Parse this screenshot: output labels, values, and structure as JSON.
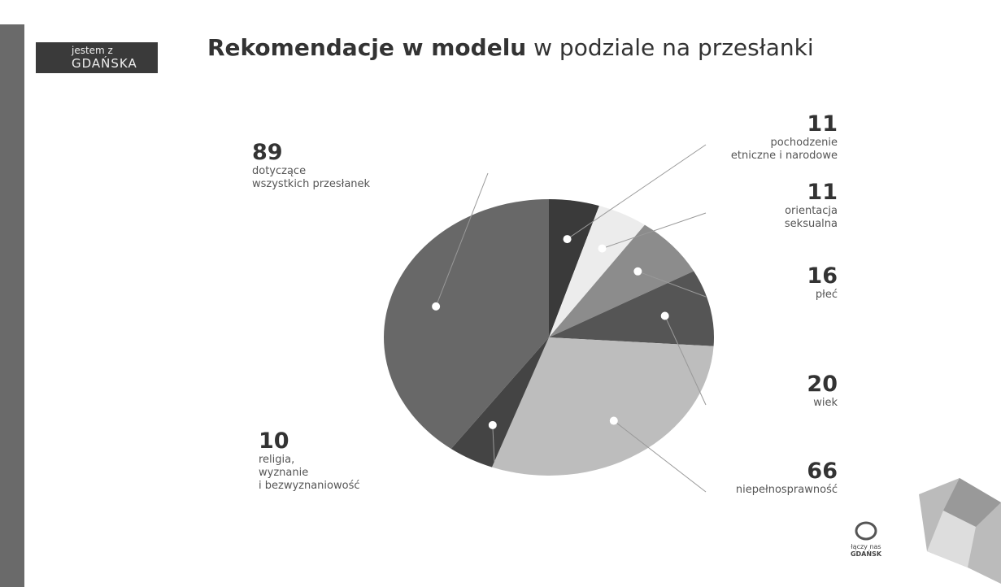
{
  "logo": {
    "top": "jestem z",
    "bottom": "GDAŃSKA"
  },
  "footer_logo": {
    "top": "łączy nas",
    "bottom": "GDAŃSK"
  },
  "chart_data": {
    "type": "pie",
    "title": [
      "Rekomendacje w modelu",
      "w podziale na przesłanki"
    ],
    "categories": [
      "pochodzenie\netniczne i narodowe",
      "orientacja\nseksualna",
      "płeć",
      "wiek",
      "niepełnosprawność",
      "religia,\nwyznanie\ni bezwyznaniowość",
      "dotyczące\nwszystkich przesłanek"
    ],
    "values": [
      11,
      11,
      16,
      20,
      66,
      10,
      89
    ],
    "colors": [
      "#3a3a3a",
      "#ececec",
      "#8c8c8c",
      "#555555",
      "#bdbdbd",
      "#444444",
      "#686868"
    ]
  }
}
